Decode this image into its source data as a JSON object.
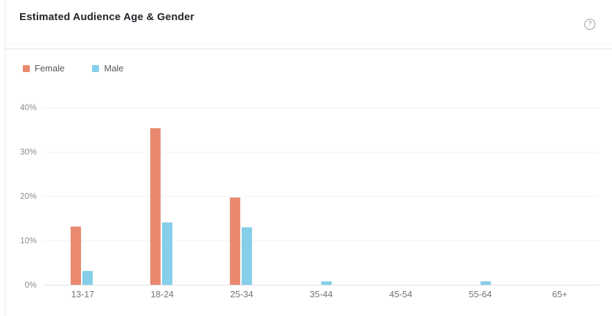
{
  "header": {
    "title": "Estimated Audience Age & Gender",
    "help_glyph": "?"
  },
  "chart_data": {
    "type": "bar",
    "title": "Estimated Audience Age & Gender",
    "categories": [
      "13-17",
      "18-24",
      "25-34",
      "35-44",
      "45-54",
      "55-64",
      "65+"
    ],
    "series": [
      {
        "name": "Female",
        "color": "#E98A70",
        "values": [
          13.2,
          35.3,
          19.7,
          0,
          0,
          0,
          0
        ]
      },
      {
        "name": "Male",
        "color": "#86CEEA",
        "values": [
          3.2,
          14,
          13,
          0.8,
          0,
          0.8,
          0
        ]
      }
    ],
    "unit": "%",
    "y_ticks_top_to_bottom": [
      "40%",
      "30%",
      "20%",
      "10%",
      "0%"
    ],
    "ylim": [
      0,
      40
    ],
    "xlabel": "",
    "ylabel": "",
    "grid": true,
    "legend_position": "top-left"
  }
}
